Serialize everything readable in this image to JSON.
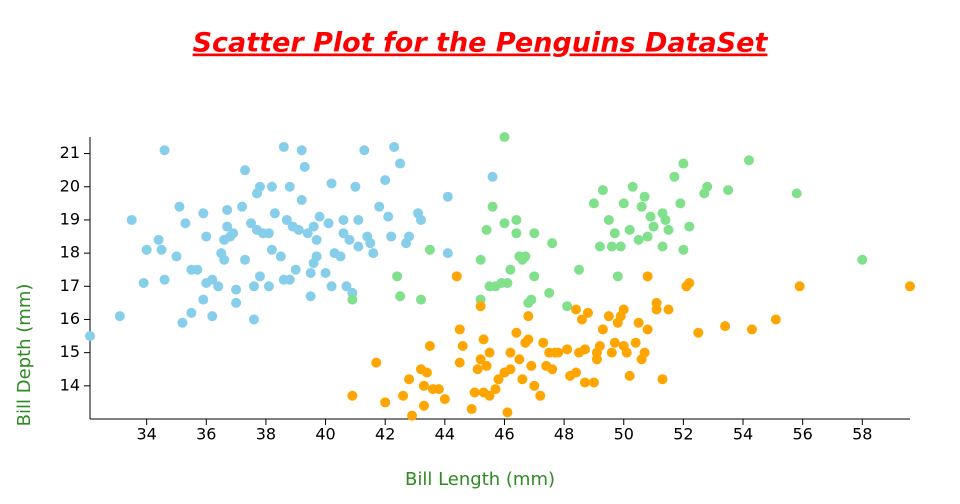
{
  "chart_data": {
    "type": "scatter",
    "title": "Scatter Plot for the Penguins DataSet",
    "x_label": "Bill Length (mm)",
    "y_label": "Bill Depth (mm)",
    "xlim": [
      32.1,
      59.6
    ],
    "ylim": [
      13.0,
      21.5
    ],
    "xticks": [
      34,
      36,
      38,
      40,
      42,
      44,
      46,
      48,
      50,
      52,
      54,
      56,
      58
    ],
    "yticks": [
      14,
      15,
      16,
      17,
      18,
      19,
      20,
      21
    ],
    "grid": false,
    "series": [
      {
        "color": "#87ceeb",
        "x": [
          32.1,
          33.1,
          33.5,
          34.0,
          33.9,
          34.4,
          34.5,
          34.6,
          34.6,
          35.0,
          35.1,
          35.3,
          35.2,
          35.5,
          35.5,
          35.7,
          36.0,
          35.9,
          35.9,
          36.2,
          36.0,
          36.2,
          36.4,
          36.5,
          36.6,
          36.7,
          36.8,
          36.9,
          36.7,
          37.0,
          37.0,
          37.2,
          37.3,
          37.3,
          37.5,
          37.6,
          37.7,
          37.8,
          37.8,
          37.6,
          37.9,
          38.1,
          38.1,
          38.2,
          38.2,
          38.3,
          38.5,
          38.6,
          38.6,
          38.7,
          38.8,
          38.8,
          38.9,
          39.0,
          39.1,
          39.2,
          39.2,
          39.3,
          39.5,
          39.5,
          39.6,
          39.6,
          39.7,
          39.8,
          40.1,
          40.2,
          40.3,
          40.5,
          40.6,
          40.6,
          40.7,
          40.8,
          40.9,
          41.0,
          41.1,
          41.1,
          41.3,
          41.4,
          41.5,
          41.6,
          41.8,
          42.0,
          42.1,
          42.2,
          42.3,
          42.5,
          42.7,
          42.8,
          43.1,
          43.2,
          44.1,
          44.1,
          45.6,
          39.4,
          40.2,
          36.6,
          37.7,
          39.7,
          40.0
        ],
        "values": [
          15.5,
          16.1,
          19.0,
          18.1,
          17.1,
          18.4,
          18.1,
          21.1,
          17.2,
          17.9,
          19.4,
          18.9,
          15.9,
          16.2,
          17.5,
          17.5,
          17.1,
          16.6,
          19.2,
          16.1,
          18.5,
          17.2,
          17.0,
          18.0,
          17.8,
          18.8,
          18.5,
          18.6,
          19.3,
          16.9,
          16.5,
          19.4,
          20.5,
          17.8,
          18.9,
          17.0,
          18.7,
          20.0,
          17.3,
          16.0,
          18.6,
          18.6,
          17.0,
          18.1,
          20.0,
          19.2,
          17.9,
          21.2,
          17.2,
          19.0,
          17.2,
          20.0,
          18.8,
          17.5,
          18.7,
          19.6,
          21.1,
          20.6,
          16.7,
          17.4,
          18.8,
          17.7,
          18.4,
          19.1,
          18.9,
          17.0,
          18.0,
          17.9,
          18.6,
          19.0,
          17.0,
          18.4,
          16.8,
          20.0,
          18.2,
          19.0,
          21.1,
          18.5,
          18.3,
          18.0,
          19.4,
          20.2,
          19.1,
          18.5,
          21.2,
          20.7,
          18.3,
          18.5,
          19.2,
          19.0,
          19.7,
          18.0,
          20.3,
          18.6,
          20.1,
          18.4,
          19.8,
          17.9,
          17.4
        ]
      },
      {
        "color": "#80e08c",
        "x": [
          40.9,
          42.4,
          42.5,
          43.2,
          43.5,
          45.2,
          45.4,
          45.2,
          45.5,
          45.6,
          45.7,
          46.0,
          46.1,
          46.2,
          46.4,
          46.5,
          46.6,
          46.8,
          46.9,
          47.0,
          47.5,
          47.6,
          46.7,
          48.1,
          48.5,
          49.0,
          49.2,
          49.3,
          49.5,
          49.7,
          49.8,
          49.9,
          50.0,
          50.2,
          50.3,
          50.5,
          50.6,
          50.7,
          50.8,
          50.9,
          51.0,
          51.3,
          51.3,
          51.4,
          51.5,
          51.7,
          51.9,
          52.0,
          52.0,
          52.2,
          52.7,
          52.8,
          53.5,
          54.2,
          55.8,
          58.0,
          45.9,
          47.0,
          46.4,
          49.6,
          46.0
        ],
        "values": [
          16.6,
          17.3,
          16.7,
          16.6,
          18.1,
          16.6,
          18.7,
          17.8,
          17.0,
          19.4,
          17.0,
          18.9,
          17.1,
          17.5,
          18.6,
          17.9,
          17.8,
          16.5,
          16.6,
          17.3,
          16.8,
          18.3,
          17.9,
          16.4,
          17.5,
          19.5,
          18.2,
          19.9,
          19.0,
          18.6,
          17.3,
          18.2,
          19.5,
          18.7,
          20.0,
          18.4,
          19.4,
          19.7,
          18.5,
          19.1,
          18.8,
          18.2,
          19.2,
          19.0,
          18.7,
          20.3,
          19.5,
          18.1,
          20.7,
          18.8,
          19.8,
          20.0,
          19.9,
          20.8,
          19.8,
          17.8,
          17.1,
          18.6,
          19.0,
          18.2,
          21.5
        ]
      },
      {
        "color": "#ffa500",
        "x": [
          40.9,
          41.7,
          42.0,
          42.6,
          42.8,
          42.9,
          43.2,
          43.3,
          43.3,
          43.4,
          43.5,
          43.6,
          43.8,
          44.0,
          44.4,
          44.5,
          44.5,
          44.9,
          45.0,
          45.1,
          45.2,
          45.2,
          45.3,
          45.4,
          45.5,
          45.5,
          45.7,
          45.8,
          46.1,
          46.2,
          46.2,
          46.4,
          46.5,
          46.6,
          46.8,
          46.8,
          46.9,
          47.2,
          47.3,
          47.4,
          47.5,
          47.6,
          47.7,
          47.8,
          48.1,
          48.2,
          48.4,
          48.4,
          48.5,
          48.6,
          48.7,
          48.8,
          49.0,
          49.1,
          49.1,
          49.2,
          49.3,
          49.5,
          49.6,
          49.8,
          49.9,
          50.0,
          50.0,
          50.1,
          50.2,
          50.4,
          50.5,
          50.7,
          50.8,
          50.8,
          51.1,
          51.1,
          51.3,
          51.5,
          52.1,
          52.2,
          52.5,
          53.4,
          54.3,
          55.1,
          55.9,
          59.6,
          45.3,
          46.7,
          47.0,
          48.7,
          49.7,
          50.6,
          46.0,
          44.6
        ],
        "values": [
          13.7,
          14.7,
          13.5,
          13.7,
          14.2,
          13.1,
          14.5,
          14.0,
          13.4,
          14.4,
          15.2,
          13.9,
          13.9,
          13.6,
          17.3,
          14.7,
          15.7,
          13.3,
          13.8,
          14.5,
          14.8,
          16.4,
          13.8,
          14.6,
          13.7,
          15.0,
          13.9,
          14.2,
          13.2,
          14.5,
          15.0,
          15.6,
          14.8,
          14.2,
          15.4,
          16.1,
          14.6,
          13.7,
          15.3,
          14.6,
          15.0,
          14.5,
          15.0,
          15.0,
          15.1,
          14.3,
          14.4,
          16.3,
          15.0,
          16.0,
          14.1,
          16.2,
          14.1,
          14.8,
          15.0,
          15.2,
          15.7,
          16.1,
          15.0,
          15.9,
          16.1,
          15.2,
          16.3,
          15.0,
          14.3,
          15.3,
          15.9,
          15.0,
          15.7,
          17.3,
          16.3,
          16.5,
          14.2,
          16.3,
          17.0,
          17.1,
          15.6,
          15.8,
          15.7,
          16.0,
          17.0,
          17.0,
          15.4,
          15.3,
          14.0,
          15.1,
          15.3,
          14.8,
          14.4,
          15.2
        ]
      }
    ]
  }
}
